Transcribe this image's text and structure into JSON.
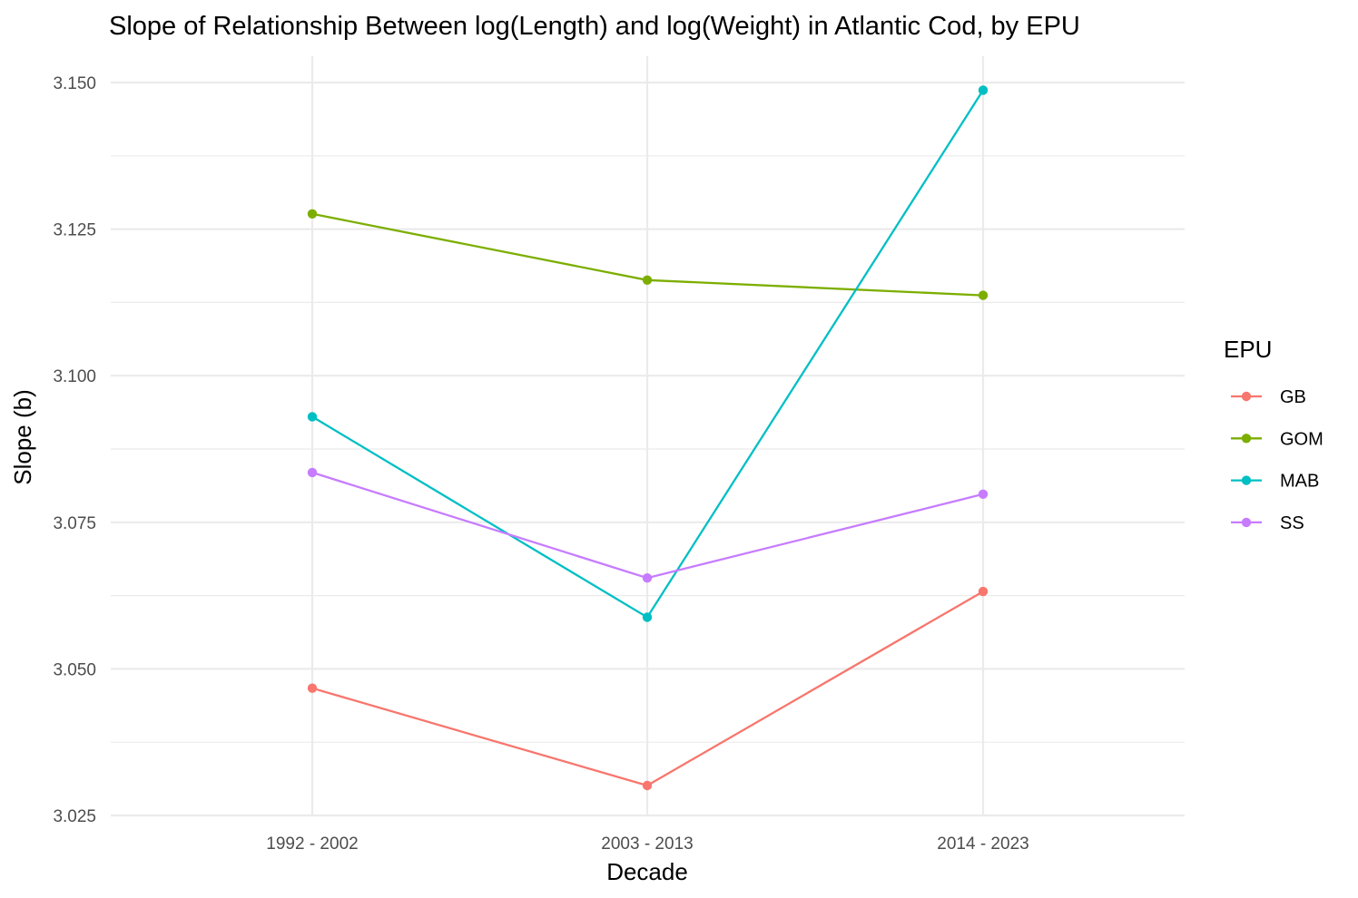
{
  "chart_data": {
    "type": "line",
    "title": "Slope of Relationship Between log(Length) and log(Weight) in Atlantic Cod, by EPU",
    "xlabel": "Decade",
    "ylabel": "Slope (b)",
    "categories": [
      "1992 - 2002",
      "2003 - 2013",
      "2014 - 2023"
    ],
    "ylim": [
      3.025,
      3.15
    ],
    "y_ticks": [
      "3.025",
      "3.050",
      "3.075",
      "3.100",
      "3.125",
      "3.150"
    ],
    "grid": true,
    "legend": {
      "title": "EPU",
      "placement": "right"
    },
    "series": [
      {
        "name": "GB",
        "color": "#F8766D",
        "values": [
          3.0467,
          3.0301,
          3.0632
        ]
      },
      {
        "name": "GOM",
        "color": "#7CAE00",
        "values": [
          3.1276,
          3.1163,
          3.1137
        ]
      },
      {
        "name": "MAB",
        "color": "#00BFC4",
        "values": [
          3.093,
          3.0588,
          3.1487
        ]
      },
      {
        "name": "SS",
        "color": "#C77CFF",
        "values": [
          3.0835,
          3.0655,
          3.0798
        ]
      }
    ]
  }
}
